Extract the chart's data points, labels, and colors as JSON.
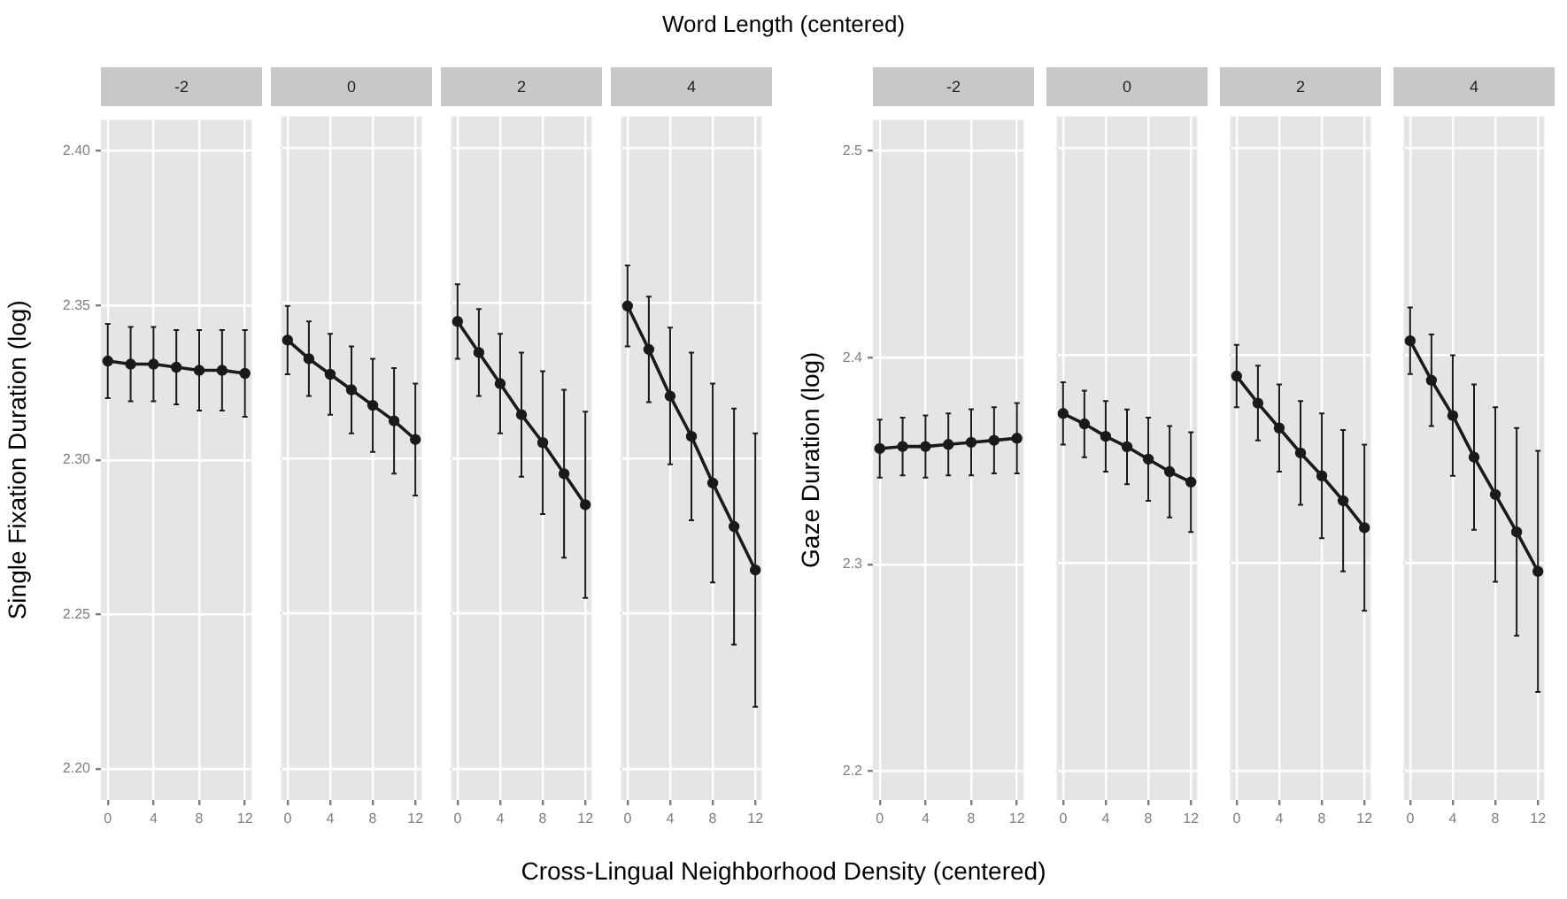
{
  "chart_data": [
    {
      "type": "line",
      "title": "-2",
      "ylabel": "Single Fixation Duration (log)",
      "annotations": [
        "Word Length (centered)",
        "Cross-Lingual Neighborhood Density (centered)"
      ],
      "x": [
        0,
        2,
        4,
        6,
        8,
        10,
        12
      ],
      "values": [
        2.332,
        2.331,
        2.331,
        2.33,
        2.329,
        2.329,
        2.328
      ],
      "errors": [
        0.012,
        0.012,
        0.012,
        0.012,
        0.013,
        0.013,
        0.014
      ],
      "color": "#1a1a1a",
      "marker": "circle",
      "grid": true,
      "xlim": [
        -0.6,
        12.6
      ],
      "xticks": [
        0,
        4,
        8,
        12
      ],
      "ylim": [
        2.19,
        2.41
      ],
      "yticks": [
        {
          "value": 2.2,
          "label": "2.20"
        },
        {
          "value": 2.25,
          "label": "2.25"
        },
        {
          "value": 2.3,
          "label": "2.30"
        },
        {
          "value": 2.35,
          "label": "2.35"
        },
        {
          "value": 2.4,
          "label": "2.40"
        }
      ]
    },
    {
      "type": "line",
      "title": "0",
      "x": [
        0,
        2,
        4,
        6,
        8,
        10,
        12
      ],
      "values": [
        2.338,
        2.332,
        2.327,
        2.322,
        2.317,
        2.312,
        2.306
      ],
      "errors": [
        0.011,
        0.012,
        0.013,
        0.014,
        0.015,
        0.017,
        0.018
      ],
      "color": "#1a1a1a",
      "marker": "circle",
      "grid": true,
      "tick_labels": "x",
      "xlim": [
        -0.6,
        12.6
      ],
      "xticks": [
        0,
        4,
        8,
        12
      ],
      "ylim": [
        2.19,
        2.41
      ],
      "yticks": [
        {
          "value": 2.2,
          "label": null
        },
        {
          "value": 2.25,
          "label": null
        },
        {
          "value": 2.3,
          "label": null
        },
        {
          "value": 2.35,
          "label": null
        },
        {
          "value": 2.4,
          "label": null
        }
      ]
    },
    {
      "type": "line",
      "title": "2",
      "x": [
        0,
        2,
        4,
        6,
        8,
        10,
        12
      ],
      "values": [
        2.344,
        2.334,
        2.324,
        2.314,
        2.305,
        2.295,
        2.285
      ],
      "errors": [
        0.012,
        0.014,
        0.016,
        0.02,
        0.023,
        0.027,
        0.03
      ],
      "color": "#1a1a1a",
      "marker": "circle",
      "grid": true,
      "tick_labels": "x",
      "xlim": [
        -0.6,
        12.6
      ],
      "xticks": [
        0,
        4,
        8,
        12
      ],
      "ylim": [
        2.19,
        2.41
      ],
      "yticks": [
        {
          "value": 2.2,
          "label": null
        },
        {
          "value": 2.25,
          "label": null
        },
        {
          "value": 2.3,
          "label": null
        },
        {
          "value": 2.35,
          "label": null
        },
        {
          "value": 2.4,
          "label": null
        }
      ]
    },
    {
      "type": "line",
      "title": "4",
      "x": [
        0,
        2,
        4,
        6,
        8,
        10,
        12
      ],
      "values": [
        2.349,
        2.335,
        2.32,
        2.307,
        2.292,
        2.278,
        2.264
      ],
      "errors": [
        0.013,
        0.017,
        0.022,
        0.027,
        0.032,
        0.038,
        0.044
      ],
      "color": "#1a1a1a",
      "marker": "circle",
      "grid": true,
      "tick_labels": "x",
      "xlim": [
        -0.6,
        12.6
      ],
      "xticks": [
        0,
        4,
        8,
        12
      ],
      "ylim": [
        2.19,
        2.41
      ],
      "yticks": [
        {
          "value": 2.2,
          "label": null
        },
        {
          "value": 2.25,
          "label": null
        },
        {
          "value": 2.3,
          "label": null
        },
        {
          "value": 2.35,
          "label": null
        },
        {
          "value": 2.4,
          "label": null
        }
      ]
    },
    {
      "type": "line",
      "title": "-2",
      "ylabel": "Gaze Duration (log)",
      "x": [
        0,
        2,
        4,
        6,
        8,
        10,
        12
      ],
      "values": [
        2.356,
        2.357,
        2.357,
        2.358,
        2.359,
        2.36,
        2.361
      ],
      "errors": [
        0.014,
        0.014,
        0.015,
        0.015,
        0.016,
        0.016,
        0.017
      ],
      "color": "#1a1a1a",
      "marker": "circle",
      "grid": true,
      "xlim": [
        -0.6,
        12.6
      ],
      "xticks": [
        0,
        4,
        8,
        12
      ],
      "ylim": [
        2.186,
        2.515
      ],
      "yticks": [
        2.2,
        2.3,
        2.4,
        2.5
      ]
    },
    {
      "type": "line",
      "title": "0",
      "x": [
        0,
        2,
        4,
        6,
        8,
        10,
        12
      ],
      "values": [
        2.372,
        2.367,
        2.361,
        2.356,
        2.35,
        2.344,
        2.339
      ],
      "errors": [
        0.015,
        0.016,
        0.017,
        0.018,
        0.02,
        0.022,
        0.024
      ],
      "color": "#1a1a1a",
      "marker": "circle",
      "grid": true,
      "tick_labels": "x",
      "xlim": [
        -0.6,
        12.6
      ],
      "xticks": [
        0,
        4,
        8,
        12
      ],
      "ylim": [
        2.186,
        2.515
      ],
      "yticks": [
        {
          "value": 2.2,
          "label": null
        },
        {
          "value": 2.3,
          "label": null
        },
        {
          "value": 2.4,
          "label": null
        },
        {
          "value": 2.5,
          "label": null
        }
      ]
    },
    {
      "type": "line",
      "title": "2",
      "x": [
        0,
        2,
        4,
        6,
        8,
        10,
        12
      ],
      "values": [
        2.39,
        2.377,
        2.365,
        2.353,
        2.342,
        2.33,
        2.317
      ],
      "errors": [
        0.015,
        0.018,
        0.021,
        0.025,
        0.03,
        0.034,
        0.04
      ],
      "color": "#1a1a1a",
      "marker": "circle",
      "grid": true,
      "tick_labels": "x",
      "xlim": [
        -0.6,
        12.6
      ],
      "xticks": [
        0,
        4,
        8,
        12
      ],
      "ylim": [
        2.186,
        2.515
      ],
      "yticks": [
        {
          "value": 2.2,
          "label": null
        },
        {
          "value": 2.3,
          "label": null
        },
        {
          "value": 2.4,
          "label": null
        },
        {
          "value": 2.5,
          "label": null
        }
      ]
    },
    {
      "type": "line",
      "title": "4",
      "x": [
        0,
        2,
        4,
        6,
        8,
        10,
        12
      ],
      "values": [
        2.407,
        2.388,
        2.371,
        2.351,
        2.333,
        2.315,
        2.296
      ],
      "errors": [
        0.016,
        0.022,
        0.029,
        0.035,
        0.042,
        0.05,
        0.058
      ],
      "color": "#1a1a1a",
      "marker": "circle",
      "grid": true,
      "tick_labels": "x",
      "xlim": [
        -0.6,
        12.6
      ],
      "xticks": [
        0,
        4,
        8,
        12
      ],
      "ylim": [
        2.186,
        2.515
      ],
      "yticks": [
        {
          "value": 2.2,
          "label": null
        },
        {
          "value": 2.3,
          "label": null
        },
        {
          "value": 2.4,
          "label": null
        },
        {
          "value": 2.5,
          "label": null
        }
      ]
    }
  ]
}
